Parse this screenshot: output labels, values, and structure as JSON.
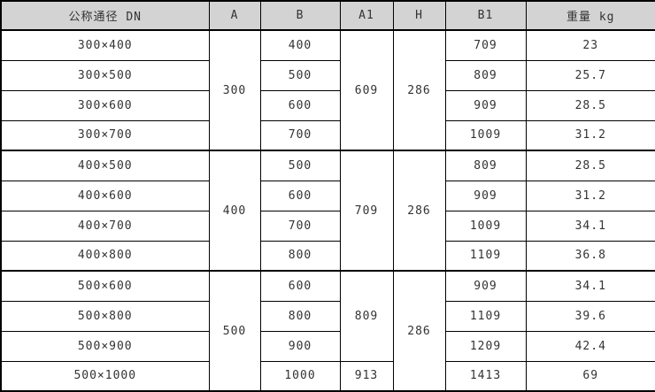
{
  "table": {
    "headers": [
      "公称通径 DN",
      "A",
      "B",
      "A1",
      "H",
      "B1",
      "重量 kg"
    ],
    "groups": [
      {
        "a": "300",
        "h": "286",
        "a1_spans": [
          {
            "value": "609",
            "span": 4
          }
        ],
        "rows": [
          {
            "dn": "300×400",
            "b": "400",
            "b1": "709",
            "kg": "23"
          },
          {
            "dn": "300×500",
            "b": "500",
            "b1": "809",
            "kg": "25.7"
          },
          {
            "dn": "300×600",
            "b": "600",
            "b1": "909",
            "kg": "28.5"
          },
          {
            "dn": "300×700",
            "b": "700",
            "b1": "1009",
            "kg": "31.2"
          }
        ]
      },
      {
        "a": "400",
        "h": "286",
        "a1_spans": [
          {
            "value": "709",
            "span": 4
          }
        ],
        "rows": [
          {
            "dn": "400×500",
            "b": "500",
            "b1": "809",
            "kg": "28.5"
          },
          {
            "dn": "400×600",
            "b": "600",
            "b1": "909",
            "kg": "31.2"
          },
          {
            "dn": "400×700",
            "b": "700",
            "b1": "1009",
            "kg": "34.1"
          },
          {
            "dn": "400×800",
            "b": "800",
            "b1": "1109",
            "kg": "36.8"
          }
        ]
      },
      {
        "a": "500",
        "h": "286",
        "a1_spans": [
          {
            "value": "809",
            "span": 3
          },
          {
            "value": "913",
            "span": 1
          }
        ],
        "rows": [
          {
            "dn": "500×600",
            "b": "600",
            "b1": "909",
            "kg": "34.1"
          },
          {
            "dn": "500×800",
            "b": "800",
            "b1": "1109",
            "kg": "39.6"
          },
          {
            "dn": "500×900",
            "b": "900",
            "b1": "1209",
            "kg": "42.4"
          },
          {
            "dn": "500×1000",
            "b": "1000",
            "b1": "1413",
            "kg": "69"
          }
        ]
      }
    ]
  }
}
